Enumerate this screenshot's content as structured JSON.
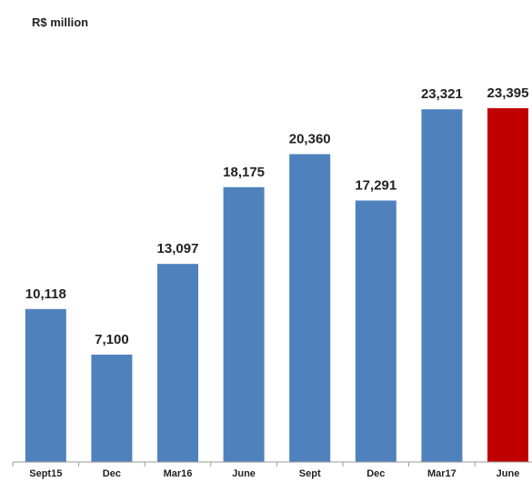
{
  "unit_label": "R$ million",
  "colors": {
    "default_bar": "#4f81bd",
    "highlight_bar": "#c00000",
    "axis": "#9a9a9a"
  },
  "chart_data": {
    "type": "bar",
    "title": "",
    "xlabel": "",
    "ylabel": "R$ million",
    "ylim": [
      0,
      25500
    ],
    "grid": false,
    "categories": [
      "Sept15",
      "Dec",
      "Mar16",
      "June",
      "Sept",
      "Dec",
      "Mar17",
      "June"
    ],
    "values": [
      10118,
      7100,
      13097,
      18175,
      20360,
      17291,
      23321,
      23395
    ],
    "value_labels": [
      "10,118",
      "7,100",
      "13,097",
      "18,175",
      "20,360",
      "17,291",
      "23,321",
      "23,395"
    ],
    "highlight_index": 7
  }
}
